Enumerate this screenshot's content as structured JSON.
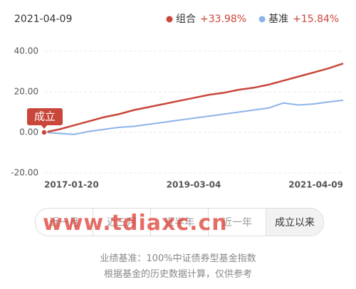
{
  "date": "2021-04-09",
  "chart_data": {
    "type": "line",
    "categories": [
      "2017-01-20",
      null,
      null,
      null,
      null,
      null,
      null,
      null,
      null,
      null,
      "2019-03-04",
      null,
      null,
      null,
      null,
      null,
      null,
      null,
      null,
      null,
      "2021-04-09"
    ],
    "series": [
      {
        "name": "组合",
        "change": "+33.98%",
        "color": "#c8463a",
        "values": [
          0,
          1.5,
          3.5,
          5.5,
          7.5,
          9,
          11,
          12.5,
          14,
          15.5,
          17,
          18.5,
          19.5,
          21,
          22,
          23.5,
          25.5,
          27.5,
          29.5,
          31.5,
          33.98
        ]
      },
      {
        "name": "基准",
        "change": "+15.84%",
        "color": "#8cb3e8",
        "values": [
          0,
          -0.5,
          -1,
          0.5,
          1.5,
          2.5,
          3,
          4,
          5,
          6,
          7,
          8,
          9,
          10,
          11,
          12,
          14.5,
          13.5,
          14,
          15,
          15.84
        ]
      }
    ],
    "ylim": [
      -20,
      40
    ],
    "yticks": [
      {
        "value": -20,
        "label": "-20.00"
      },
      {
        "value": 0,
        "label": "0.00"
      },
      {
        "value": 20,
        "label": "20.00"
      },
      {
        "value": 40,
        "label": "40.00"
      }
    ],
    "grid": true,
    "annotation": "成立"
  },
  "tabs": [
    "近一月",
    "近三月",
    "近半年",
    "近一年",
    "成立以来"
  ],
  "selected_tab": 4,
  "watermark": "www.tdiaxc.cn",
  "notes": [
    "业绩基准：100%中证债券型基金指数",
    "根据基金的历史数据计算，仅供参考"
  ]
}
